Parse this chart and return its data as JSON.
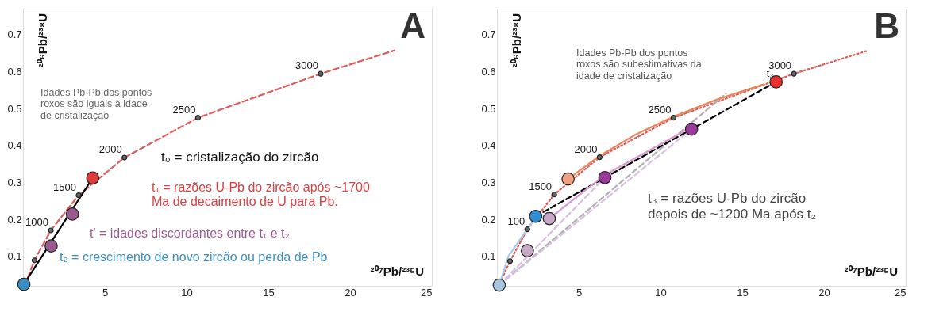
{
  "chart_data": [
    {
      "type": "scatter",
      "title": "A",
      "xlabel": "²⁰⁷Pb/²³⁵U",
      "ylabel": "²⁰⁶Pb/²³⁸U",
      "xlim": [
        0,
        25
      ],
      "ylim": [
        0.02,
        0.77
      ],
      "xticks": [
        5,
        10,
        15,
        20,
        25
      ],
      "yticks": [
        0.1,
        0.2,
        0.3,
        0.4,
        0.5,
        0.6,
        0.7
      ],
      "series": [
        {
          "type": "line",
          "line_style": "dashed",
          "marker": "none",
          "color": "#e05a5a",
          "x": [
            0.1,
            0.7,
            1.7,
            3.4,
            6.2,
            10.7,
            18.2,
            22.7
          ],
          "values": [
            0.02,
            0.089,
            0.17,
            0.265,
            0.367,
            0.475,
            0.594,
            0.657
          ]
        },
        {
          "type": "line",
          "line_style": "solid",
          "marker": "none",
          "color": "#000000",
          "x": [
            4.26,
            0.05
          ],
          "values": [
            0.312,
            0.024
          ]
        },
        {
          "type": "scatter",
          "marker": "circle",
          "color": "#666666",
          "sizes": [
            0.15,
            0.15,
            0.15,
            0.15,
            0.15,
            0.15
          ],
          "x": [
            0.7,
            1.7,
            3.4,
            6.2,
            10.7,
            18.2
          ],
          "values": [
            0.089,
            0.17,
            0.265,
            0.367,
            0.475,
            0.594
          ]
        },
        {
          "type": "scatter",
          "marker": "circle",
          "color": "#e03a3a",
          "sizes": [
            1
          ],
          "x": [
            4.26
          ],
          "values": [
            0.312
          ]
        },
        {
          "type": "scatter",
          "marker": "circle",
          "color": "#9b5a8f",
          "sizes": [
            1,
            1
          ],
          "x": [
            3.02,
            1.72
          ],
          "values": [
            0.214,
            0.128
          ]
        },
        {
          "type": "scatter",
          "marker": "circle",
          "color": "#3b8ec4",
          "sizes": [
            1
          ],
          "x": [
            0.05
          ],
          "values": [
            0.024
          ]
        }
      ],
      "annotations": [
        "Idades Pb-Pb dos pontos\nroxos são iguais à idade\nde cristalização",
        "t₀ = cristalização do zircão",
        "t₁ = razões U-Pb do zircão após ~1700\nMa de decaimento de U para Pb.",
        "t' = idades discordantes entre t₁ e t₂",
        "t₂ = crescimento de novo zircão ou perda de Pb",
        {
          "text": "1000",
          "x": 1.7,
          "y": 0.17
        },
        {
          "text": "1500",
          "x": 3.4,
          "y": 0.265
        },
        {
          "text": "2000",
          "x": 6.2,
          "y": 0.367
        },
        {
          "text": "2500",
          "x": 10.7,
          "y": 0.475
        },
        {
          "text": "3000",
          "x": 18.2,
          "y": 0.594
        }
      ]
    },
    {
      "type": "scatter",
      "title": "B",
      "xlabel": "²⁰⁷Pb/²³⁵U",
      "ylabel": "²⁰⁶Pb/²³⁸U",
      "xlim": [
        0,
        25
      ],
      "ylim": [
        0.02,
        0.77
      ],
      "xticks": [
        5,
        10,
        15,
        20,
        25
      ],
      "yticks": [
        0.1,
        0.2,
        0.3,
        0.4,
        0.5,
        0.6,
        0.7
      ],
      "series": [
        {
          "type": "line",
          "line_style": "dotted",
          "marker": "none",
          "color": "#e05a5a",
          "x": [
            0.1,
            0.8,
            1.86,
            3.5,
            6.28,
            10.8,
            18.16,
            22.7
          ],
          "values": [
            0.02,
            0.087,
            0.173,
            0.267,
            0.368,
            0.475,
            0.594,
            0.657
          ]
        },
        {
          "type": "line",
          "line_style": "dashed",
          "marker": "none",
          "color": "#b0b0b0",
          "x": [
            0.14,
            14.0
          ],
          "values": [
            0.022,
            0.54
          ]
        },
        {
          "type": "line",
          "line_style": "dashed",
          "marker": "none",
          "color": "#d9bfe0",
          "x": [
            0.14,
            11.9
          ],
          "values": [
            0.022,
            0.444
          ]
        },
        {
          "type": "line",
          "line_style": "dashed",
          "marker": "none",
          "color": "#d9bfe0",
          "x": [
            0.14,
            6.6
          ],
          "values": [
            0.022,
            0.313
          ]
        },
        {
          "type": "line",
          "line_style": "dashed",
          "marker": "none",
          "color": "#000000",
          "x": [
            2.37,
            17.07
          ],
          "values": [
            0.208,
            0.572
          ]
        },
        {
          "type": "line",
          "line_style": "solid",
          "marker": "none",
          "color": "#e8875a",
          "x": [
            4.35,
            6.3,
            8.5,
            10.8,
            13.5,
            16.3
          ],
          "values": [
            0.309,
            0.372,
            0.43,
            0.478,
            0.525,
            0.565
          ]
        },
        {
          "type": "line",
          "line_style": "solid",
          "marker": "none",
          "color": "#d898d0",
          "x": [
            3.2,
            6.6,
            11.5
          ],
          "values": [
            0.202,
            0.32,
            0.44
          ]
        },
        {
          "type": "line",
          "line_style": "solid",
          "marker": "none",
          "color": "#a8c8e8",
          "x": [
            0.14,
            0.7,
            2.2
          ],
          "values": [
            0.022,
            0.1,
            0.195
          ]
        },
        {
          "type": "scatter",
          "marker": "circle",
          "color": "#666666",
          "sizes": [
            0.15,
            0.15,
            0.15,
            0.15,
            0.15,
            0.15
          ],
          "x": [
            0.8,
            1.86,
            3.5,
            6.28,
            10.8,
            18.16
          ],
          "values": [
            0.087,
            0.173,
            0.267,
            0.368,
            0.475,
            0.594
          ]
        },
        {
          "type": "scatter",
          "marker": "circle",
          "color": "#a8c4e0",
          "sizes": [
            1
          ],
          "x": [
            0.14
          ],
          "values": [
            0.022
          ]
        },
        {
          "type": "scatter",
          "marker": "circle",
          "color": "#c8a8c8",
          "sizes": [
            1,
            1
          ],
          "x": [
            3.2,
            1.86
          ],
          "values": [
            0.202,
            0.115
          ]
        },
        {
          "type": "scatter",
          "marker": "circle",
          "color": "#2f8fd0",
          "sizes": [
            1
          ],
          "x": [
            2.37
          ],
          "values": [
            0.208
          ]
        },
        {
          "type": "scatter",
          "marker": "circle",
          "color": "#f0a080",
          "sizes": [
            1
          ],
          "x": [
            4.35
          ],
          "values": [
            0.309
          ]
        },
        {
          "type": "scatter",
          "marker": "circle",
          "color": "#9b3a9b",
          "sizes": [
            1,
            1
          ],
          "x": [
            6.6,
            11.9
          ],
          "values": [
            0.313,
            0.444
          ]
        },
        {
          "type": "scatter",
          "marker": "circle",
          "color": "#e83030",
          "sizes": [
            1
          ],
          "x": [
            17.07
          ],
          "values": [
            0.572
          ]
        }
      ],
      "annotations": [
        "Idades Pb-Pb dos pontos\nroxos são subestimativas da\nidade de cristalização",
        "t₃ = razões U-Pb do zircão\ndepois de ~1200 Ma após t₂",
        {
          "text": "t₃",
          "x": 17.07,
          "y": 0.572
        },
        {
          "text": "100",
          "x": 1.86,
          "y": 0.173
        },
        {
          "text": "1500",
          "x": 3.5,
          "y": 0.267
        },
        {
          "text": "2000",
          "x": 6.28,
          "y": 0.368
        },
        {
          "text": "2500",
          "x": 10.8,
          "y": 0.475
        },
        {
          "text": "3000",
          "x": 18.16,
          "y": 0.594
        }
      ]
    }
  ]
}
